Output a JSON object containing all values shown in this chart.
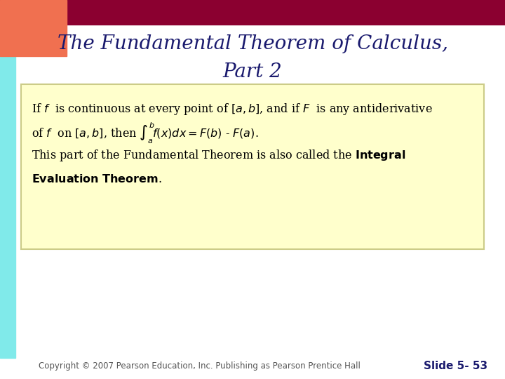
{
  "title_line1": "The Fundamental Theorem of Calculus,",
  "title_line2": "Part 2",
  "title_color": "#1a1a6e",
  "title_fontsize": 20,
  "bg_color": "#ffffff",
  "header_bar_color": "#8b0030",
  "header_orange_color": "#f07050",
  "left_cyan_color": "#80eaea",
  "box_bg_color": "#ffffcc",
  "box_border_color": "#cccc88",
  "text_color": "#000000",
  "footer_text": "Copyright © 2007 Pearson Education, Inc. Publishing as Pearson Prentice Hall",
  "footer_slide": "Slide 5- 53",
  "footer_color": "#555555",
  "footer_fontsize": 8.5,
  "footer_slide_color": "#1a1a6e",
  "footer_slide_fontsize": 11
}
